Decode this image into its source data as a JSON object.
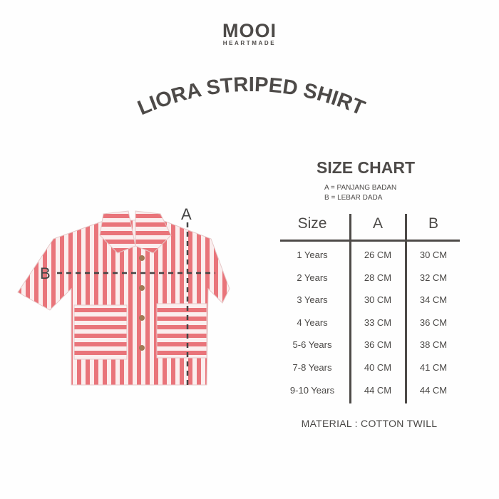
{
  "brand": {
    "name": "MOOI",
    "tagline": "HEARTMADE"
  },
  "product_title": "LIORA STRIPED SHIRT",
  "size_chart": {
    "title": "SIZE CHART",
    "legend": [
      "A = PANJANG BADAN",
      "B = LEBAR DADA"
    ],
    "headers": [
      "Size",
      "A",
      "B"
    ],
    "rows": [
      [
        "1 Years",
        "26 CM",
        "30 CM"
      ],
      [
        "2 Years",
        "28 CM",
        "32 CM"
      ],
      [
        "3 Years",
        "30 CM",
        "34 CM"
      ],
      [
        "4 Years",
        "33 CM",
        "36 CM"
      ],
      [
        "5-6 Years",
        "36 CM",
        "38 CM"
      ],
      [
        "7-8 Years",
        "40 CM",
        "41 CM"
      ],
      [
        "9-10 Years",
        "44 CM",
        "44 CM"
      ]
    ],
    "material": "MATERIAL : COTTON TWILL"
  },
  "diagram": {
    "label_a": "A",
    "label_b": "B"
  },
  "colors": {
    "text": "#4d4a48",
    "stripe": "#e9747a",
    "stripe_bg": "#fbeeee"
  }
}
